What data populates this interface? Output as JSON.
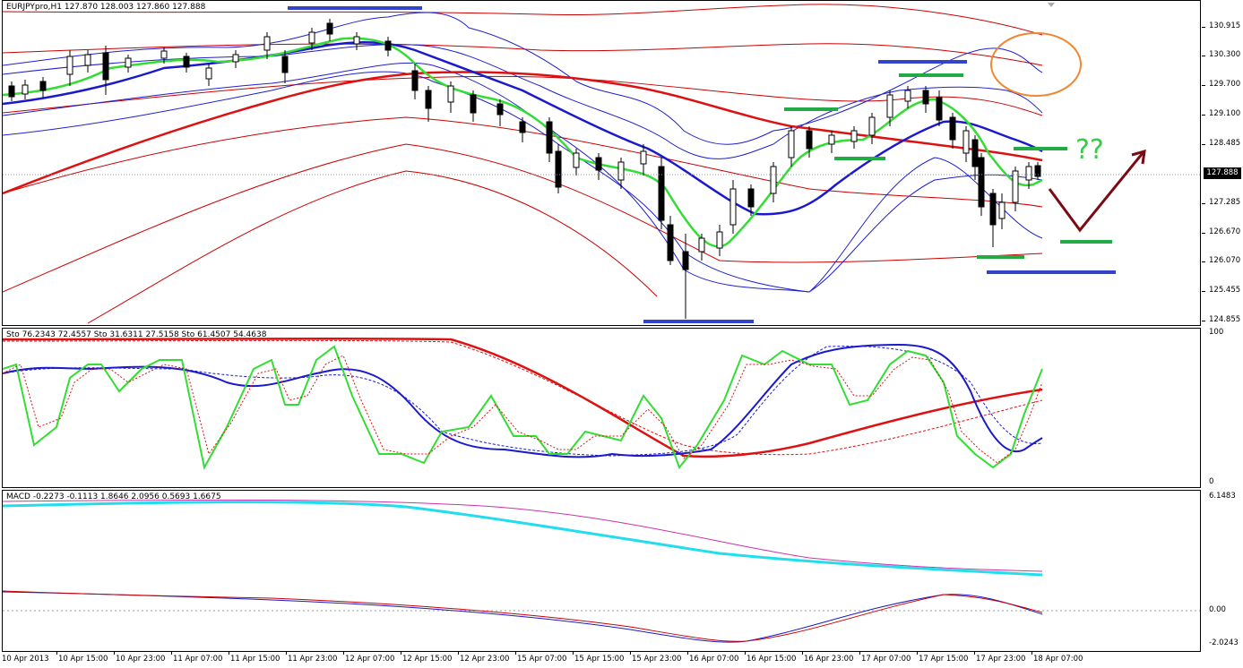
{
  "main": {
    "title": "EURJPYpro,H1  127.870 128.003 127.860 127.888",
    "annotation_text": "??",
    "current_price": "127.888",
    "price_scale": [
      "130.915",
      "130.300",
      "129.700",
      "129.100",
      "128.485",
      "127.888",
      "127.285",
      "126.670",
      "126.070",
      "125.455",
      "124.855"
    ]
  },
  "stochastic": {
    "title": "Sto 76.2343 72.4557  Sto 31.6311 27.5158  Sto 61.4507 54.4638",
    "scale_top": "100",
    "scale_bottom": "0"
  },
  "macd": {
    "title": "MACD -0.2273 -0.1113 1.8646 2.0956 0.5693 1.6675",
    "scale": [
      "6.1483",
      "0.00",
      "-2.0243"
    ]
  },
  "time_axis": [
    "10 Apr 2013",
    "10 Apr 15:00",
    "10 Apr 23:00",
    "11 Apr 07:00",
    "11 Apr 15:00",
    "11 Apr 23:00",
    "12 Apr 07:00",
    "12 Apr 15:00",
    "12 Apr 23:00",
    "15 Apr 07:00",
    "15 Apr 15:00",
    "15 Apr 23:00",
    "16 Apr 07:00",
    "16 Apr 15:00",
    "16 Apr 23:00",
    "17 Apr 07:00",
    "17 Apr 15:00",
    "17 Apr 23:00",
    "18 Apr 07:00"
  ],
  "colors": {
    "bollinger": "#1f1fd0",
    "envelope": "#cc0000",
    "ma_green": "#33dd33",
    "ma_blue": "#1a1acc",
    "ma_red": "#dd1111",
    "support_green": "#22aa44",
    "level_blue": "#3344cc",
    "circle": "#ee8833",
    "arrow": "#7a0a14",
    "macd_cyan": "#22ddee",
    "macd_magenta": "#cc33aa"
  }
}
